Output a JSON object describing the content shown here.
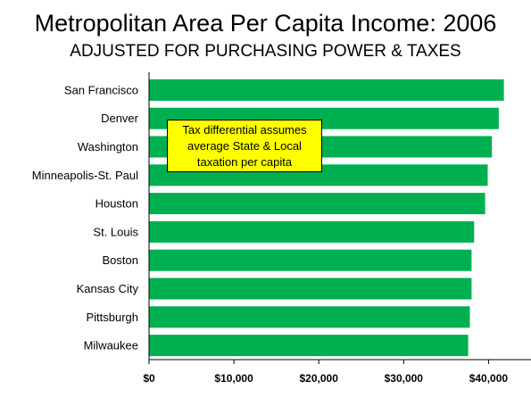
{
  "chart_data": {
    "type": "bar",
    "orientation": "horizontal",
    "title": "Metropolitan Area Per Capita Income: 2006",
    "subtitle": "ADJUSTED FOR PURCHASING POWER & TAXES",
    "categories": [
      "San Francisco",
      "Denver",
      "Washington",
      "Minneapolis-St. Paul",
      "Houston",
      "St. Louis",
      "Boston",
      "Kansas City",
      "Pittsburgh",
      "Milwaukee"
    ],
    "values": [
      41800,
      41200,
      40400,
      39900,
      39600,
      38300,
      38000,
      38000,
      37800,
      37600
    ],
    "xlim": [
      0,
      45000
    ],
    "xticks": [
      {
        "value": 0,
        "label": "$0"
      },
      {
        "value": 10000,
        "label": "$10,000"
      },
      {
        "value": 20000,
        "label": "$20,000"
      },
      {
        "value": 30000,
        "label": "$30,000"
      },
      {
        "value": 40000,
        "label": "$40,000"
      }
    ],
    "bar_color": "#00b050",
    "grid": false,
    "legend": "none",
    "annotation": "Tax differential assumes\naverage State & Local\ntaxation per capita",
    "annotation_color": "#ffff00"
  }
}
